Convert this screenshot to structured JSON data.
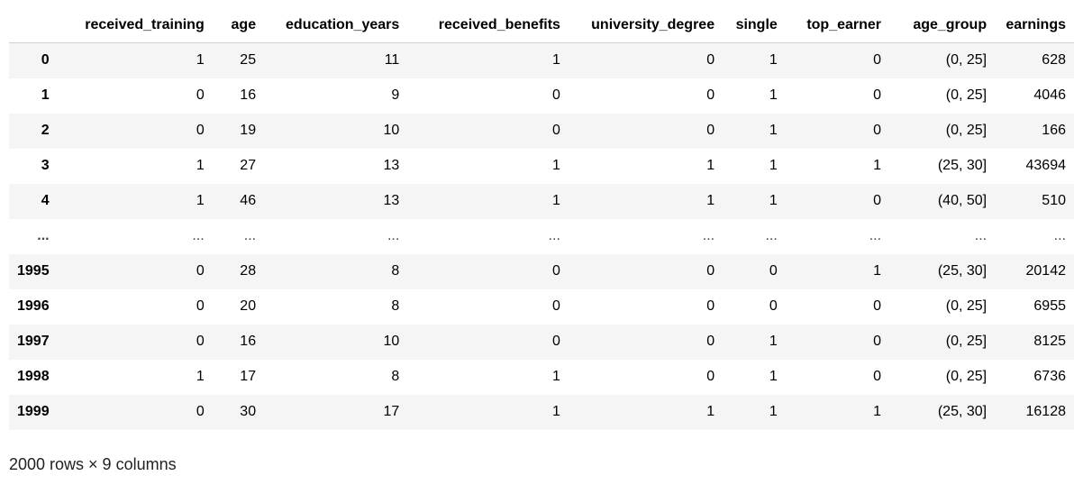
{
  "dataframe": {
    "columns": [
      "",
      "received_training",
      "age",
      "education_years",
      "received_benefits",
      "university_degree",
      "single",
      "top_earner",
      "age_group",
      "earnings"
    ],
    "rows": [
      {
        "index": "0",
        "cells": [
          "1",
          "25",
          "11",
          "1",
          "0",
          "1",
          "0",
          "(0, 25]",
          "628"
        ]
      },
      {
        "index": "1",
        "cells": [
          "0",
          "16",
          "9",
          "0",
          "0",
          "1",
          "0",
          "(0, 25]",
          "4046"
        ]
      },
      {
        "index": "2",
        "cells": [
          "0",
          "19",
          "10",
          "0",
          "0",
          "1",
          "0",
          "(0, 25]",
          "166"
        ]
      },
      {
        "index": "3",
        "cells": [
          "1",
          "27",
          "13",
          "1",
          "1",
          "1",
          "1",
          "(25, 30]",
          "43694"
        ]
      },
      {
        "index": "4",
        "cells": [
          "1",
          "46",
          "13",
          "1",
          "1",
          "1",
          "0",
          "(40, 50]",
          "510"
        ]
      },
      {
        "index": "...",
        "cells": [
          "...",
          "...",
          "...",
          "...",
          "...",
          "...",
          "...",
          "...",
          "..."
        ]
      },
      {
        "index": "1995",
        "cells": [
          "0",
          "28",
          "8",
          "0",
          "0",
          "0",
          "1",
          "(25, 30]",
          "20142"
        ]
      },
      {
        "index": "1996",
        "cells": [
          "0",
          "20",
          "8",
          "0",
          "0",
          "0",
          "0",
          "(0, 25]",
          "6955"
        ]
      },
      {
        "index": "1997",
        "cells": [
          "0",
          "16",
          "10",
          "0",
          "0",
          "1",
          "0",
          "(0, 25]",
          "8125"
        ]
      },
      {
        "index": "1998",
        "cells": [
          "1",
          "17",
          "8",
          "1",
          "0",
          "1",
          "0",
          "(0, 25]",
          "6736"
        ]
      },
      {
        "index": "1999",
        "cells": [
          "0",
          "30",
          "17",
          "1",
          "1",
          "1",
          "1",
          "(25, 30]",
          "16128"
        ]
      }
    ]
  },
  "footer": {
    "shape_text": "2000 rows × 9 columns"
  }
}
